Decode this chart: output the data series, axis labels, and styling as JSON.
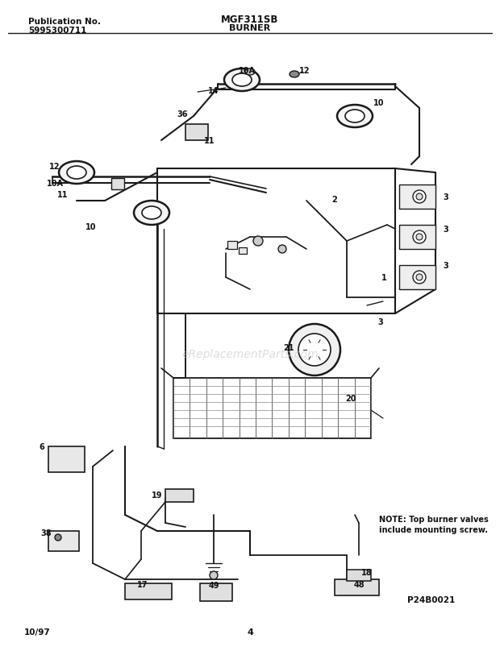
{
  "title_model": "MGF311SB",
  "title_section": "BURNER",
  "pub_label": "Publication No.",
  "pub_number": "5995300711",
  "date_label": "10/97",
  "page_number": "4",
  "diagram_code": "P24B0021",
  "note_line1": "NOTE: Top burner valves",
  "note_line2": "include mounting screw.",
  "bg_color": "#ffffff",
  "line_color": "#1a1a1a",
  "text_color": "#111111",
  "watermark_text": "eReplacementParts.com",
  "fig_width": 6.2,
  "fig_height": 8.04,
  "dpi": 100
}
